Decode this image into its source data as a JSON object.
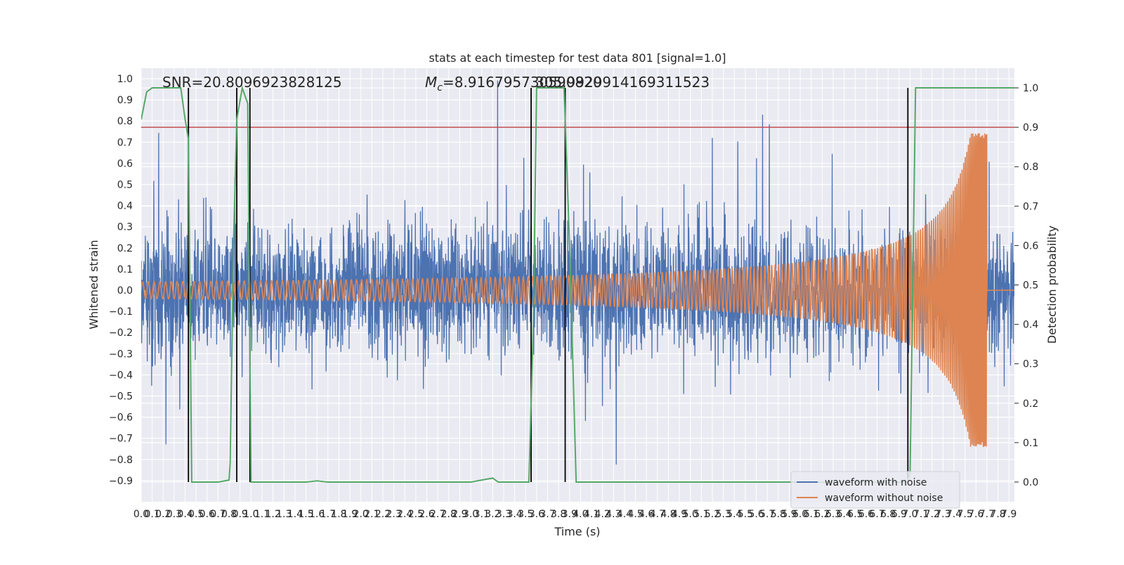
{
  "chart_data": {
    "type": "line",
    "title": "stats at each timestep for test data 801 [signal=1.0]",
    "xlabel": "Time (s)",
    "ylabel": "Whitened strain",
    "y2label": "Detection probability",
    "xlim": [
      0,
      7.95
    ],
    "ylim": [
      -1.0,
      1.05
    ],
    "y2lim": [
      -0.05,
      1.05
    ],
    "x_ticks": [
      0.0,
      0.1,
      0.2,
      0.3,
      0.4,
      0.5,
      0.6,
      0.7,
      0.8,
      0.9,
      1.0,
      1.1,
      1.2,
      1.3,
      1.4,
      1.5,
      1.6,
      1.7,
      1.8,
      1.9,
      2.0,
      2.1,
      2.2,
      2.3,
      2.4,
      2.5,
      2.6,
      2.7,
      2.8,
      2.9,
      3.0,
      3.1,
      3.2,
      3.3,
      3.4,
      3.5,
      3.6,
      3.7,
      3.8,
      3.9,
      4.0,
      4.1,
      4.2,
      4.3,
      4.4,
      4.5,
      4.6,
      4.7,
      4.8,
      4.9,
      5.0,
      5.1,
      5.2,
      5.3,
      5.4,
      5.5,
      5.6,
      5.7,
      5.8,
      5.9,
      6.0,
      6.1,
      6.2,
      6.3,
      6.4,
      6.5,
      6.6,
      6.7,
      6.8,
      6.9,
      7.0,
      7.1,
      7.2,
      7.3,
      7.4,
      7.5,
      7.6,
      7.7,
      7.8,
      7.9
    ],
    "x_tick_labels": [
      "0.0",
      "0.1",
      "0.2",
      "0.3",
      "0.4",
      "0.5",
      "0.6",
      "0.7",
      "0.8",
      "0.9",
      "1.0",
      "1.1",
      "1.2",
      "1.3",
      "1.4",
      "1.5",
      "1.6",
      "1.7",
      "1.8",
      "1.9",
      "2.0",
      "2.1",
      "2.2",
      "2.3",
      "2.4",
      "2.5",
      "2.6",
      "2.7",
      "2.8",
      "2.9",
      "3.0",
      "3.1",
      "3.2",
      "3.3",
      "3.4",
      "3.5",
      "3.6",
      "3.7",
      "3.8",
      "3.9",
      "4.0",
      "4.1",
      "4.2",
      "4.3",
      "4.4",
      "4.5",
      "4.6",
      "4.7",
      "4.8",
      "4.9",
      "5.0",
      "5.1",
      "5.2",
      "5.3",
      "5.4",
      "5.5",
      "5.6",
      "5.7",
      "5.8",
      "5.9",
      "6.0",
      "6.1",
      "6.2",
      "6.3",
      "6.4",
      "6.5",
      "6.6",
      "6.7",
      "6.8",
      "6.9",
      "7.0",
      "7.1",
      "7.2",
      "7.3",
      "7.4",
      "7.5",
      "7.6",
      "7.7",
      "7.8",
      "7.9"
    ],
    "y_ticks": [
      1.0,
      0.9,
      0.8,
      0.7,
      0.6,
      0.5,
      0.4,
      0.3,
      0.2,
      0.1,
      0.0,
      -0.1,
      -0.2,
      -0.3,
      -0.4,
      -0.5,
      -0.6,
      -0.7,
      -0.8,
      -0.9
    ],
    "y_tick_labels": [
      "1.0",
      "0.9",
      "0.8",
      "0.7",
      "0.6",
      "0.5",
      "0.4",
      "0.3",
      "0.2",
      "0.1",
      "0.0",
      "−0.1",
      "−0.2",
      "−0.3",
      "−0.4",
      "−0.5",
      "−0.6",
      "−0.7",
      "−0.8",
      "−0.9"
    ],
    "y2_ticks": [
      1.0,
      0.9,
      0.8,
      0.7,
      0.6,
      0.5,
      0.4,
      0.3,
      0.2,
      0.1,
      0.0
    ],
    "y2_tick_labels": [
      "1.0",
      "0.9",
      "0.8",
      "0.7",
      "0.6",
      "0.5",
      "0.4",
      "0.3",
      "0.2",
      "0.1",
      "0.0"
    ],
    "grid": true,
    "legend_placement": "lower-right",
    "annotations": {
      "snr": "SNR=20.8096923828125",
      "mc_symbol": "M",
      "mc_subscript": "c",
      "mc_value": "=8.916795730590820",
      "overlap_text": "305.9929914169311523"
    },
    "threshold": 0.9,
    "vertical_lines_x": [
      0.43,
      0.87,
      0.99,
      3.55,
      3.86,
      6.98
    ],
    "detection_probability": {
      "x": [
        0.0,
        0.05,
        0.1,
        0.15,
        0.2,
        0.3,
        0.36,
        0.4,
        0.43,
        0.46,
        0.5,
        0.6,
        0.7,
        0.8,
        0.81,
        0.84,
        0.87,
        0.92,
        0.97,
        1.0,
        1.04,
        1.1,
        1.5,
        1.6,
        1.7,
        2.0,
        2.5,
        3.0,
        3.1,
        3.2,
        3.25,
        3.3,
        3.5,
        3.53,
        3.57,
        3.6,
        3.7,
        3.8,
        3.85,
        3.9,
        3.96,
        4.0,
        4.5,
        5.0,
        6.0,
        6.9,
        6.97,
        7.0,
        7.05,
        7.1,
        7.2,
        7.5,
        7.95
      ],
      "y": [
        0.92,
        0.99,
        1.0,
        1.0,
        1.0,
        1.0,
        1.0,
        0.92,
        0.87,
        0.0,
        0.0,
        0.0,
        0.0,
        0.005,
        0.05,
        0.6,
        0.92,
        1.0,
        0.96,
        0.0,
        0.0,
        0.0,
        0.0,
        0.003,
        0.0,
        0.0,
        0.0,
        0.0,
        0.005,
        0.01,
        0.0,
        0.0,
        0.0,
        0.0,
        0.4,
        1.0,
        1.0,
        1.0,
        1.0,
        0.6,
        0.0,
        0.0,
        0.0,
        0.0,
        0.0,
        0.0,
        0.0,
        0.02,
        1.0,
        1.0,
        1.0,
        1.0,
        1.0
      ]
    },
    "series": [
      {
        "name": "waveform with noise",
        "color": "#4c72b0",
        "amplitude_range": [
          -0.87,
          0.99
        ]
      },
      {
        "name": "waveform without noise",
        "color": "#dd8452",
        "amplitude_start": 0.04,
        "amplitude_peak": 0.74,
        "merger_time_s": 7.7
      }
    ],
    "colors": {
      "background": "#eaeaf2",
      "grid": "#ffffff",
      "noise": "#4c72b0",
      "clean": "#dd8452",
      "probability": "#55a868",
      "threshold": "#c44e52",
      "vline": "#000000"
    }
  }
}
